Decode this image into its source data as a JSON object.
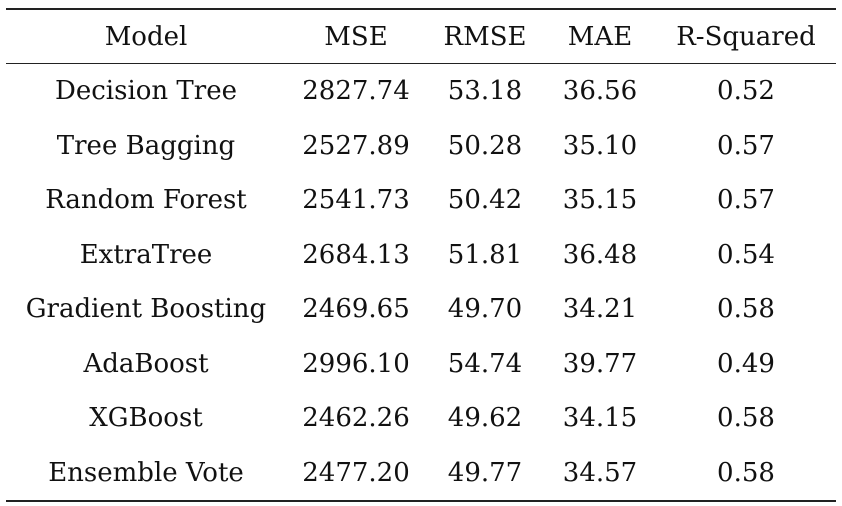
{
  "table": {
    "headers": [
      "Model",
      "MSE",
      "RMSE",
      "MAE",
      "R-Squared"
    ],
    "rows": [
      [
        "Decision Tree",
        "2827.74",
        "53.18",
        "36.56",
        "0.52"
      ],
      [
        "Tree Bagging",
        "2527.89",
        "50.28",
        "35.10",
        "0.57"
      ],
      [
        "Random Forest",
        "2541.73",
        "50.42",
        "35.15",
        "0.57"
      ],
      [
        "ExtraTree",
        "2684.13",
        "51.81",
        "36.48",
        "0.54"
      ],
      [
        "Gradient Boosting",
        "2469.65",
        "49.70",
        "34.21",
        "0.58"
      ],
      [
        "AdaBoost",
        "2996.10",
        "54.74",
        "39.77",
        "0.49"
      ],
      [
        "XGBoost",
        "2462.26",
        "49.62",
        "34.15",
        "0.58"
      ],
      [
        "Ensemble Vote",
        "2477.20",
        "49.77",
        "34.57",
        "0.58"
      ]
    ]
  }
}
